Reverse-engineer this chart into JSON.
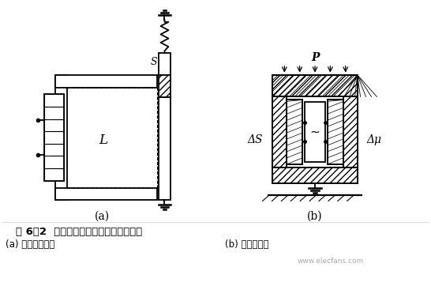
{
  "title_main": "图 6－2  变磁阻式电磁传感器的各种形式",
  "caption_a": "(a) 变气隙面积式",
  "caption_b": "(b) 变磁导率式",
  "label_a": "(a)",
  "label_b": "(b)",
  "label_L": "L",
  "label_S": "S",
  "label_deltaS": "ΔS",
  "label_P": "P",
  "label_deltamu": "Δμ",
  "bg_color": "#ffffff",
  "line_color": "#000000",
  "watermark": "www.elecfans.com"
}
